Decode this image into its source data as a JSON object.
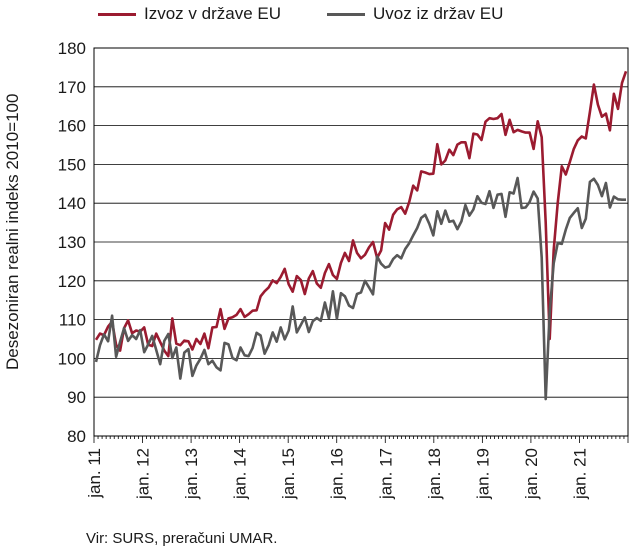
{
  "chart_data": {
    "type": "line",
    "ylabel": "Desezoniran realni indeks 2010=100",
    "ylim": [
      80,
      180
    ],
    "yticks": [
      80,
      90,
      100,
      110,
      120,
      130,
      140,
      150,
      160,
      170,
      180
    ],
    "xticks": [
      "jan. 11",
      "jan. 12",
      "jan. 13",
      "jan. 14",
      "jan. 15",
      "jan. 16",
      "jan. 17",
      "jan. 18",
      "jan. 19",
      "jan. 20",
      "jan. 21"
    ],
    "x_start": "2011-01",
    "x_end": "2021-12",
    "grid": "horizontal",
    "legend_position": "top",
    "series": [
      {
        "name": "Izvoz v države EU",
        "color": "#9b1b30",
        "values": [
          104.8,
          106.4,
          106.0,
          108.2,
          109.5,
          103.5,
          102.0,
          107.8,
          109.8,
          106.5,
          107.2,
          106.9,
          108.0,
          103.5,
          103.2,
          106.4,
          104.2,
          102.0,
          100.6,
          110.3,
          103.8,
          103.4,
          104.6,
          104.4,
          102.3,
          105.0,
          103.7,
          106.4,
          102.6,
          108.0,
          108.1,
          112.7,
          107.6,
          110.3,
          110.6,
          111.2,
          112.7,
          110.7,
          111.4,
          112.3,
          112.4,
          116.0,
          117.3,
          118.3,
          120.1,
          119.4,
          121.0,
          123.1,
          119.1,
          117.2,
          121.2,
          120.2,
          116.6,
          120.6,
          122.5,
          119.3,
          118.2,
          122.0,
          124.3,
          121.5,
          120.5,
          124.6,
          127.2,
          125.1,
          130.4,
          127.2,
          125.8,
          126.7,
          128.6,
          130.0,
          125.9,
          127.8,
          134.9,
          133.2,
          137.0,
          138.4,
          139.0,
          137.3,
          140.3,
          144.5,
          143.3,
          148.2,
          147.9,
          147.5,
          147.6,
          155.2,
          150.0,
          151.0,
          153.8,
          152.4,
          155.1,
          155.7,
          155.7,
          151.6,
          157.9,
          157.7,
          156.3,
          161.0,
          161.9,
          161.7,
          161.9,
          163.0,
          157.6,
          161.5,
          158.3,
          158.9,
          158.5,
          158.2,
          158.2,
          154.0,
          161.1,
          157.0,
          135.0,
          105.0,
          128.0,
          140.0,
          149.5,
          147.4,
          150.6,
          154.0,
          156.2,
          157.2,
          156.7,
          163.5,
          170.6,
          165.4,
          162.3,
          163.1,
          158.8,
          168.2,
          164.3,
          171.0,
          174.0
        ]
      },
      {
        "name": "Uvoz iz držav EU",
        "color": "#585858",
        "values": [
          99.1,
          103.4,
          106.2,
          104.4,
          111.0,
          100.4,
          104.3,
          107.8,
          104.5,
          106.0,
          105.0,
          107.3,
          101.6,
          103.6,
          105.8,
          102.2,
          98.5,
          104.5,
          106.3,
          100.1,
          102.8,
          94.8,
          101.5,
          102.4,
          95.5,
          98.2,
          99.9,
          102.2,
          98.5,
          99.4,
          97.7,
          96.9,
          104.0,
          103.6,
          100.1,
          99.5,
          102.8,
          100.8,
          100.6,
          102.7,
          106.6,
          105.9,
          101.2,
          103.4,
          106.7,
          104.3,
          108.0,
          104.9,
          107.2,
          113.4,
          106.7,
          108.6,
          110.6,
          106.8,
          109.6,
          110.4,
          109.7,
          114.4,
          110.3,
          117.3,
          110.2,
          116.8,
          116.0,
          113.6,
          113.0,
          116.6,
          117.0,
          120.0,
          118.3,
          116.5,
          126.3,
          124.4,
          123.4,
          123.7,
          125.6,
          126.6,
          125.8,
          128.2,
          129.7,
          131.7,
          133.6,
          136.2,
          137.0,
          134.7,
          131.7,
          137.9,
          134.7,
          138.1,
          135.2,
          135.5,
          133.3,
          135.3,
          139.5,
          136.8,
          138.4,
          141.8,
          140.1,
          139.8,
          143.1,
          138.8,
          142.2,
          142.4,
          136.5,
          142.8,
          142.5,
          146.5,
          138.8,
          138.9,
          140.3,
          143.0,
          141.2,
          126.0,
          89.5,
          112.0,
          124.5,
          129.7,
          129.5,
          133.2,
          136.2,
          137.5,
          138.7,
          133.6,
          136.0,
          145.5,
          146.3,
          144.7,
          141.8,
          145.2,
          138.9,
          141.7,
          141.0,
          140.9,
          140.9
        ]
      }
    ]
  },
  "source": "Vir: SURS, preračuni UMAR."
}
